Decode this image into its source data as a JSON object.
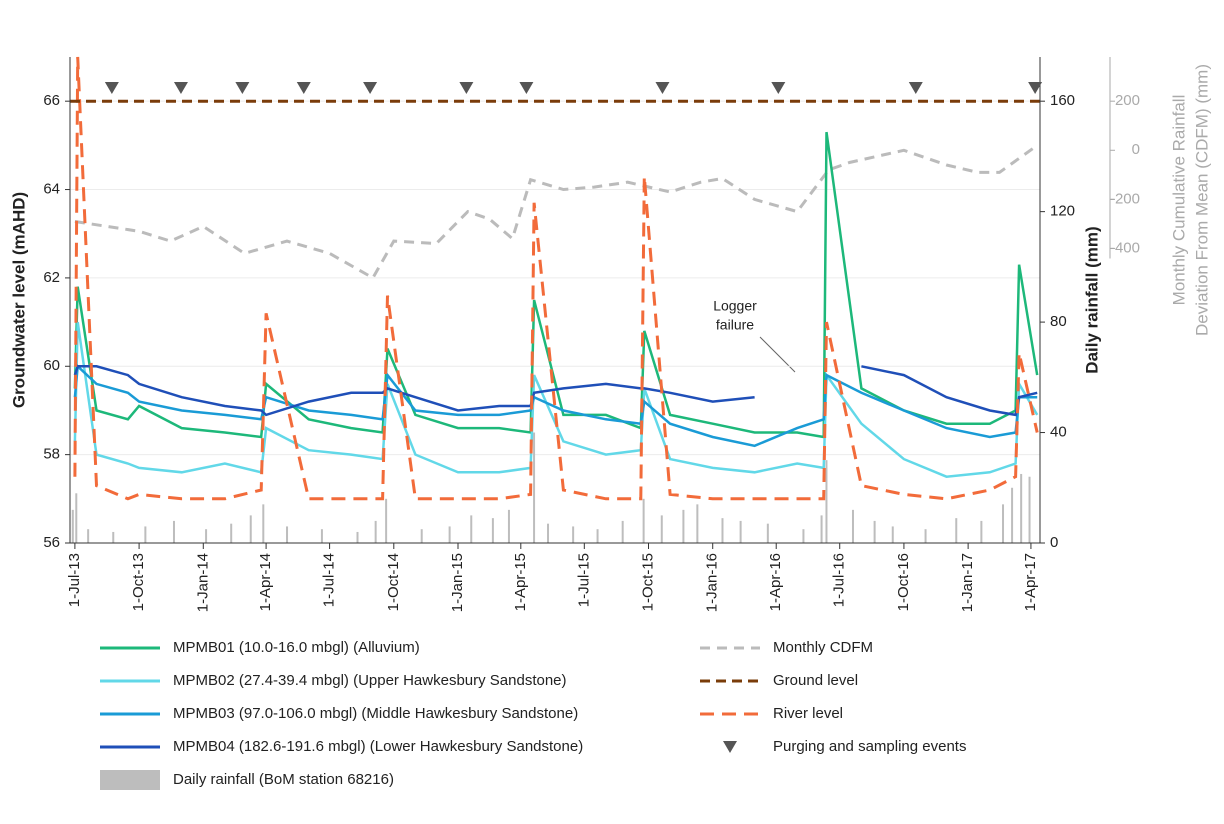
{
  "chart_data": {
    "type": "line",
    "xlim": [
      "2013-06-24",
      "2017-04-14"
    ],
    "xticks": [
      {
        "value": "2013-07-01",
        "label": "1-Jul-13"
      },
      {
        "value": "2013-10-01",
        "label": "1-Oct-13"
      },
      {
        "value": "2014-01-01",
        "label": "1-Jan-14"
      },
      {
        "value": "2014-04-01",
        "label": "1-Apr-14"
      },
      {
        "value": "2014-07-01",
        "label": "1-Jul-14"
      },
      {
        "value": "2014-10-01",
        "label": "1-Oct-14"
      },
      {
        "value": "2015-01-01",
        "label": "1-Jan-15"
      },
      {
        "value": "2015-04-01",
        "label": "1-Apr-15"
      },
      {
        "value": "2015-07-01",
        "label": "1-Jul-15"
      },
      {
        "value": "2015-10-01",
        "label": "1-Oct-15"
      },
      {
        "value": "2016-01-01",
        "label": "1-Jan-16"
      },
      {
        "value": "2016-04-01",
        "label": "1-Apr-16"
      },
      {
        "value": "2016-07-01",
        "label": "1-Jul-16"
      },
      {
        "value": "2016-10-01",
        "label": "1-Oct-16"
      },
      {
        "value": "2017-01-01",
        "label": "1-Jan-17"
      },
      {
        "value": "2017-04-01",
        "label": "1-Apr-17"
      }
    ],
    "ylim": [
      56,
      67
    ],
    "yticks": [
      56,
      58,
      60,
      62,
      64,
      66
    ],
    "y2lim": [
      0,
      176
    ],
    "y2ticks": [
      0,
      40,
      80,
      120,
      160
    ],
    "y3lim": [
      -1600,
      380
    ],
    "y3ticks": [
      200,
      0,
      -200,
      -400
    ],
    "ylabel": "Groundwater level (mAHD)",
    "y2label": "Daily rainfall (mm)",
    "y3label": [
      "Monthly Cumulative Rainfall",
      "Deviation From Mean (CDFM) (mm)"
    ],
    "annotation": [
      "Logger",
      "failure"
    ],
    "x": [
      "2013-07-01",
      "2013-07-05",
      "2013-08-01",
      "2013-09-15",
      "2013-10-01",
      "2013-12-01",
      "2014-02-01",
      "2014-03-25",
      "2014-04-01",
      "2014-06-01",
      "2014-08-01",
      "2014-09-15",
      "2014-09-22",
      "2014-11-01",
      "2015-01-01",
      "2015-03-01",
      "2015-04-15",
      "2015-04-20",
      "2015-06-01",
      "2015-08-01",
      "2015-09-20",
      "2015-09-25",
      "2015-11-01",
      "2016-01-01",
      "2016-03-01",
      "2016-05-01",
      "2016-06-08",
      "2016-06-12",
      "2016-08-01",
      "2016-10-01",
      "2016-12-01",
      "2017-02-01",
      "2017-03-10",
      "2017-03-15",
      "2017-04-10"
    ],
    "series": [
      {
        "name": "MPMB01 (10.0-16.0 mbgl) (Alluvium)",
        "color": "#1db87a",
        "values": [
          59.5,
          61.8,
          59.0,
          58.8,
          59.1,
          58.6,
          58.5,
          58.4,
          59.6,
          58.8,
          58.6,
          58.5,
          60.4,
          58.9,
          58.6,
          58.6,
          58.5,
          61.5,
          58.9,
          58.9,
          58.6,
          60.8,
          58.9,
          58.7,
          58.5,
          58.5,
          58.4,
          65.3,
          59.5,
          59.0,
          58.7,
          58.7,
          59.0,
          62.3,
          59.8
        ]
      },
      {
        "name": "MPMB02 (27.4-39.4 mbgl) (Upper Hawkesbury Sandstone)",
        "color": "#62d8e8",
        "values": [
          58.3,
          61.0,
          58.0,
          57.8,
          57.7,
          57.6,
          57.8,
          57.6,
          58.6,
          58.1,
          58.0,
          57.9,
          59.6,
          58.0,
          57.6,
          57.6,
          57.7,
          59.8,
          58.3,
          58.0,
          58.1,
          59.5,
          57.9,
          57.7,
          57.6,
          57.8,
          57.7,
          59.8,
          58.7,
          57.9,
          57.5,
          57.6,
          57.8,
          59.6,
          58.9
        ]
      },
      {
        "name": "MPMB03 (97.0-106.0 mbgl) (Middle Hawkesbury Sandstone)",
        "color": "#1a9bd6",
        "values": [
          59.3,
          60.0,
          59.6,
          59.4,
          59.2,
          59.0,
          58.9,
          58.8,
          59.3,
          59.0,
          58.9,
          58.8,
          59.8,
          59.0,
          58.9,
          58.9,
          59.0,
          59.3,
          59.0,
          58.8,
          58.7,
          59.2,
          58.7,
          58.4,
          58.2,
          58.6,
          58.8,
          59.8,
          59.4,
          59.0,
          58.6,
          58.4,
          58.5,
          59.3,
          59.3
        ]
      },
      {
        "name": "MPMB04 (182.6-191.6 mbgl) (Lower Hawkesbury Sandstone)",
        "color": "#1f4fb8",
        "values": [
          59.8,
          60.0,
          60.0,
          59.8,
          59.6,
          59.3,
          59.1,
          59.0,
          58.9,
          59.2,
          59.4,
          59.4,
          59.5,
          59.3,
          59.0,
          59.1,
          59.1,
          59.4,
          59.5,
          59.6,
          59.5,
          59.5,
          59.4,
          59.2,
          59.3,
          null,
          null,
          null,
          60.0,
          59.8,
          59.3,
          59.0,
          58.9,
          59.3,
          59.4
        ]
      },
      {
        "name": "River level",
        "color": "#f26b3a",
        "dash": "14 8",
        "values": [
          57.5,
          67.0,
          57.3,
          57.0,
          57.1,
          57.0,
          57.0,
          57.2,
          61.2,
          57.0,
          57.0,
          57.0,
          61.6,
          57.0,
          57.0,
          57.0,
          57.1,
          63.7,
          57.2,
          57.0,
          57.0,
          64.3,
          57.1,
          57.0,
          57.0,
          57.0,
          57.0,
          61.0,
          57.3,
          57.1,
          57.0,
          57.2,
          57.5,
          60.3,
          58.5
        ]
      },
      {
        "name": "Monthly CDFM",
        "color": "#bbbbbb",
        "dash": "10 7",
        "axis": "y3",
        "x": [
          "2013-07-01",
          "2013-10-01",
          "2013-11-15",
          "2014-01-01",
          "2014-03-01",
          "2014-05-01",
          "2014-07-01",
          "2014-09-01",
          "2014-10-01",
          "2014-12-01",
          "2015-01-15",
          "2015-02-15",
          "2015-03-20",
          "2015-04-15",
          "2015-06-01",
          "2015-07-15",
          "2015-09-01",
          "2015-11-01",
          "2015-12-15",
          "2016-01-15",
          "2016-03-01",
          "2016-05-01",
          "2016-06-15",
          "2016-07-15",
          "2016-10-01",
          "2016-12-01",
          "2017-01-15",
          "2017-02-15",
          "2017-04-10"
        ],
        "values": [
          -290,
          -330,
          -370,
          -310,
          -420,
          -370,
          -420,
          -520,
          -370,
          -380,
          -250,
          -280,
          -360,
          -120,
          -160,
          -150,
          -130,
          -170,
          -130,
          -115,
          -200,
          -250,
          -80,
          -50,
          0,
          -60,
          -90,
          -90,
          20
        ]
      },
      {
        "name": "Ground level",
        "color": "#7a3c0a",
        "dash": "10 6",
        "x": [
          "2013-06-24",
          "2017-04-14"
        ],
        "values": [
          66,
          66
        ]
      }
    ],
    "rainfall": {
      "name": "Daily rainfall (BoM station 68216)",
      "color": "#bdbdbd",
      "axis": "y2",
      "x": [
        "2013-06-28",
        "2013-07-03",
        "2013-07-20",
        "2013-08-25",
        "2013-10-10",
        "2013-11-20",
        "2014-01-05",
        "2014-02-10",
        "2014-03-10",
        "2014-03-28",
        "2014-05-01",
        "2014-06-20",
        "2014-08-10",
        "2014-09-05",
        "2014-09-20",
        "2014-11-10",
        "2014-12-20",
        "2015-01-20",
        "2015-02-20",
        "2015-03-15",
        "2015-04-20",
        "2015-05-10",
        "2015-06-15",
        "2015-07-20",
        "2015-08-25",
        "2015-09-24",
        "2015-10-20",
        "2015-11-20",
        "2015-12-10",
        "2016-01-15",
        "2016-02-10",
        "2016-03-20",
        "2016-05-10",
        "2016-06-05",
        "2016-06-12",
        "2016-07-20",
        "2016-08-20",
        "2016-09-15",
        "2016-11-01",
        "2016-12-15",
        "2017-01-20",
        "2017-02-20",
        "2017-03-05",
        "2017-03-18",
        "2017-03-30"
      ],
      "values": [
        12,
        18,
        5,
        4,
        6,
        8,
        5,
        7,
        10,
        14,
        6,
        5,
        4,
        8,
        16,
        5,
        6,
        10,
        9,
        12,
        40,
        7,
        6,
        5,
        8,
        16,
        10,
        12,
        14,
        9,
        8,
        7,
        5,
        10,
        30,
        12,
        8,
        6,
        5,
        9,
        8,
        14,
        20,
        25,
        24
      ]
    },
    "events": {
      "name": "Purging and sampling events",
      "color": "#555555",
      "x": [
        "2013-08-23",
        "2013-11-30",
        "2014-02-26",
        "2014-05-25",
        "2014-08-28",
        "2015-01-13",
        "2015-04-09",
        "2015-10-21",
        "2016-04-04",
        "2016-10-18",
        "2017-04-07"
      ]
    }
  }
}
